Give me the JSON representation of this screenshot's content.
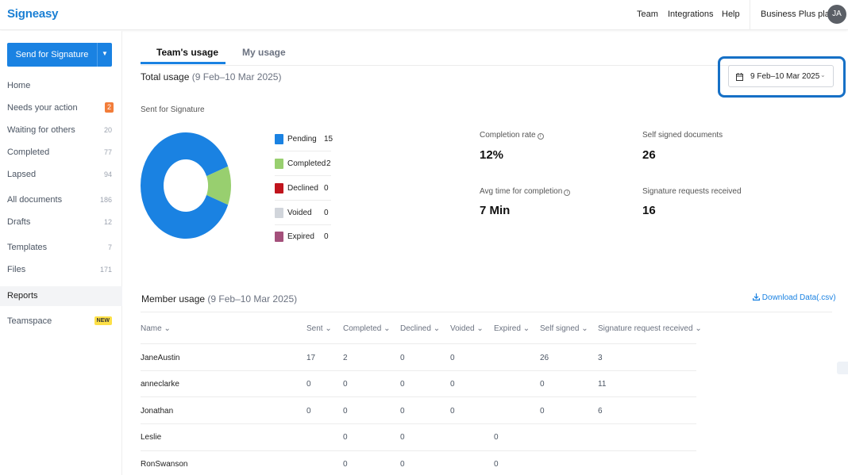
{
  "app": {
    "logo": "Signeasy"
  },
  "topnav": {
    "team": "Team",
    "integrations": "Integrations",
    "help": "Help",
    "plan": "Business Plus plan",
    "avatar_initials": "JA"
  },
  "sidebar": {
    "send_button": "Send for Signature",
    "items": [
      {
        "label": "Home",
        "count": ""
      },
      {
        "label": "Needs your action",
        "count": "2"
      },
      {
        "label": "Waiting for others",
        "count": "20"
      },
      {
        "label": "Completed",
        "count": "77"
      },
      {
        "label": "Lapsed",
        "count": "94"
      },
      {
        "label": "All documents",
        "count": "186"
      },
      {
        "label": "Drafts",
        "count": "12"
      },
      {
        "label": "Templates",
        "count": "7"
      },
      {
        "label": "Files",
        "count": "171"
      },
      {
        "label": "Reports",
        "count": ""
      },
      {
        "label": "Teamspace",
        "badge": "NEW"
      }
    ]
  },
  "tabs": {
    "team": "Team's usage",
    "mine": "My usage"
  },
  "total_usage": {
    "label": "Total usage",
    "period": "(9 Feb–10 Mar 2025)"
  },
  "date_filter": {
    "value": "9 Feb–10 Mar 2025"
  },
  "sent_for_signature": {
    "title": "Sent for Signature",
    "legend": [
      {
        "name": "Pending",
        "value": "15",
        "color": "#1a82e2"
      },
      {
        "name": "Completed",
        "value": "2",
        "color": "#98cf6f"
      },
      {
        "name": "Declined",
        "value": "0",
        "color": "#c0141c"
      },
      {
        "name": "Voided",
        "value": "0",
        "color": "#d1d5db"
      },
      {
        "name": "Expired",
        "value": "0",
        "color": "#a4507b"
      }
    ]
  },
  "chart_data": {
    "type": "pie",
    "title": "Sent for Signature",
    "categories": [
      "Pending",
      "Completed",
      "Declined",
      "Voided",
      "Expired"
    ],
    "values": [
      15,
      2,
      0,
      0,
      0
    ],
    "colors": [
      "#1a82e2",
      "#98cf6f",
      "#c0141c",
      "#d1d5db",
      "#a4507b"
    ],
    "legend": "right"
  },
  "stats": {
    "completion_rate_label": "Completion rate",
    "completion_rate_value": "12%",
    "avg_time_label": "Avg time for completion",
    "avg_time_value": "7 Min",
    "self_signed_label": "Self signed documents",
    "self_signed_value": "26",
    "requests_received_label": "Signature requests received",
    "requests_received_value": "16"
  },
  "member_usage": {
    "label": "Member usage",
    "period": "(9 Feb–10 Mar 2025)",
    "download": "Download Data(.csv)",
    "columns": [
      "Name",
      "Sent",
      "Completed",
      "Declined",
      "Voided",
      "Expired",
      "Self signed",
      "Signature request received"
    ],
    "rows": [
      {
        "name": "JaneAustin",
        "sent": "17",
        "completed": "2",
        "declined": "0",
        "voided": "0",
        "expired": "",
        "self_signed": "26",
        "received": "3"
      },
      {
        "name": "anneclarke",
        "sent": "0",
        "completed": "0",
        "declined": "0",
        "voided": "0",
        "expired": "",
        "self_signed": "0",
        "received": "11"
      },
      {
        "name": "Jonathan",
        "sent": "0",
        "completed": "0",
        "declined": "0",
        "voided": "0",
        "expired": "",
        "self_signed": "0",
        "received": "6"
      },
      {
        "name": "Leslie",
        "sent": "",
        "completed": "0",
        "declined": "0",
        "voided": "",
        "expired": "0",
        "self_signed": "",
        "received": ""
      },
      {
        "name": "RonSwanson",
        "sent": "",
        "completed": "0",
        "declined": "0",
        "voided": "",
        "expired": "0",
        "self_signed": "",
        "received": ""
      }
    ]
  }
}
